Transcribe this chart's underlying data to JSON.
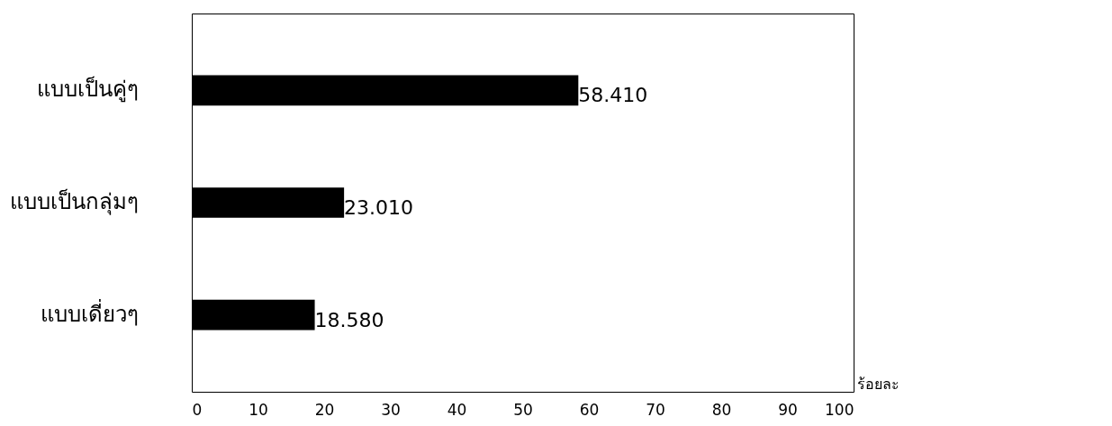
{
  "chart_data": {
    "type": "bar",
    "orientation": "horizontal",
    "xlabel": "ร้อยละ",
    "categories": [
      "แบบเป็นคู่ๆ",
      "แบบเป็นกลุ่มๆ",
      "แบบเดี่ยวๆ"
    ],
    "values": [
      58.41,
      23.01,
      18.58
    ],
    "color": "#000000",
    "value_labels": [
      "58.410",
      "23.010",
      "18.580"
    ],
    "xlim": [
      0,
      100
    ],
    "xticks": [
      0,
      10,
      20,
      30,
      40,
      50,
      60,
      70,
      80,
      90,
      100
    ],
    "grid": false
  }
}
